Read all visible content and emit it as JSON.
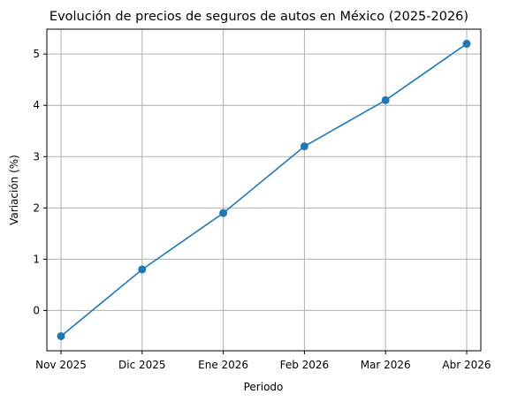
{
  "chart_data": {
    "type": "line",
    "title": "Evolución de precios de seguros de autos en México (2025-2026)",
    "xlabel": "Periodo",
    "ylabel": "Variación (%)",
    "categories": [
      "Nov 2025",
      "Dic 2025",
      "Ene 2026",
      "Feb 2026",
      "Mar 2026",
      "Abr 2026"
    ],
    "series": [
      {
        "values": [
          -0.5,
          0.8,
          1.9,
          3.2,
          4.1,
          5.2
        ],
        "color": "#1f77b4",
        "marker": "circle"
      }
    ],
    "yticks": [
      0,
      1,
      2,
      3,
      4,
      5
    ],
    "ylim": [
      -0.785,
      5.485
    ],
    "grid": true,
    "legend": "none"
  }
}
